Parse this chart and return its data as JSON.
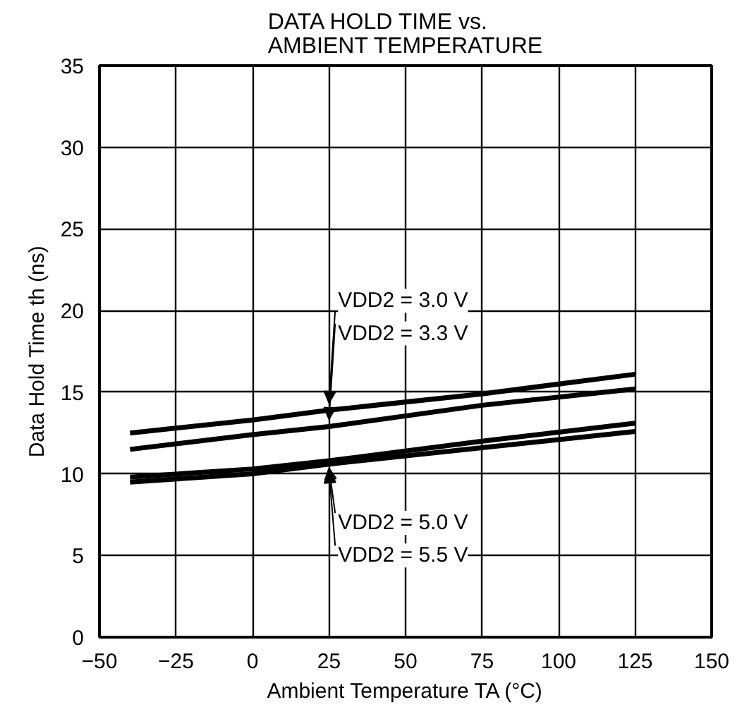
{
  "chart_data": {
    "type": "line",
    "title": "DATA HOLD TIME vs.\nAMBIENT TEMPERATURE",
    "xlabel": "Ambient Temperature TA (°C)",
    "ylabel": "Data Hold Time th (ns)",
    "x": [
      -40,
      0,
      25,
      75,
      125
    ],
    "series": [
      {
        "name": "VDD2 = 3.0 V",
        "color": "#000000",
        "values": [
          12.5,
          13.3,
          13.9,
          14.9,
          16.1
        ]
      },
      {
        "name": "VDD2 = 3.3 V",
        "color": "#000000",
        "values": [
          11.5,
          12.4,
          12.9,
          14.2,
          15.2
        ]
      },
      {
        "name": "VDD2 = 5.0 V",
        "color": "#000000",
        "values": [
          9.8,
          10.3,
          10.8,
          12.0,
          13.1
        ]
      },
      {
        "name": "VDD2 = 5.5 V",
        "color": "#000000",
        "values": [
          9.5,
          10.0,
          10.6,
          11.6,
          12.6
        ]
      }
    ],
    "xlim": [
      -50,
      150
    ],
    "xticks": [
      {
        "value": -50,
        "label": "−50"
      },
      {
        "value": -25,
        "label": "−25"
      },
      0,
      25,
      50,
      75,
      100,
      125,
      150
    ],
    "ylim": [
      0,
      35
    ],
    "yticks": [
      0,
      5,
      10,
      15,
      20,
      25,
      30,
      35
    ],
    "grid": true,
    "line_style": "solid",
    "marker": "none"
  }
}
